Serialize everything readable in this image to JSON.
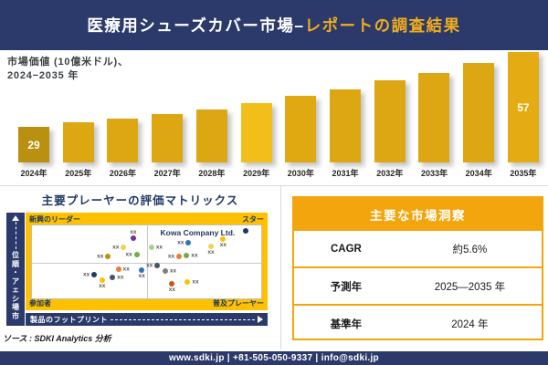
{
  "header": {
    "title_main": "医療用シューズカバー市場–",
    "title_accent": "レポートの調査結果"
  },
  "chart_data": [
    {
      "type": "bar",
      "subtitle_line1": "市場価値 (10億米ドル)、",
      "subtitle_line2": "2024−2035 年",
      "categories": [
        "2024年",
        "2025年",
        "2026年",
        "2027年",
        "2028年",
        "2029年",
        "2030年",
        "2031年",
        "2032年",
        "2033年",
        "2034年",
        "2035年"
      ],
      "values_labeled": {
        "2024年": 29,
        "2035年": 57
      },
      "values_estimated": [
        29,
        31,
        32,
        34,
        36,
        38,
        41,
        43,
        46,
        49,
        53,
        57
      ],
      "bar_heights_pct": [
        32,
        36,
        40,
        44,
        48,
        54,
        60,
        66,
        74,
        81,
        90,
        100
      ],
      "bar_colors": [
        "#B9900F",
        "#DCA713",
        "#DCA713",
        "#DCA713",
        "#DCA713",
        "#F2BE1A",
        "#E0A912",
        "#DCA713",
        "#DCA713",
        "#DCA713",
        "#DCA713",
        "#E4AB12"
      ],
      "ylim": [
        0,
        60
      ],
      "grid": false,
      "legend": "none"
    },
    {
      "type": "scatter",
      "title": "主要プレーヤーの評価マトリックス",
      "xlabel": "製品のフットプリント",
      "ylabel": "市場シェア・順位",
      "quadrants": {
        "top_left": "新興のリーダー",
        "top_right": "スター",
        "bottom_left": "参加者",
        "bottom_right": "普及プレーヤー"
      },
      "highlight_company": "Kowa Company Ltd.",
      "points": [
        {
          "x": 44.2,
          "y": 17.1,
          "color": "#7030A0",
          "label": "xx",
          "side": "above"
        },
        {
          "x": 40.0,
          "y": 30.5,
          "color": "#F2D252",
          "label": "xx",
          "side": "left"
        },
        {
          "x": 33.2,
          "y": 42.7,
          "color": "#BF9000",
          "label": "xx",
          "side": "left"
        },
        {
          "x": 45.7,
          "y": 40.2,
          "color": "#70AD47",
          "label": "xx",
          "side": "left"
        },
        {
          "x": 93.2,
          "y": 7.3,
          "color": "#1F3864",
          "label": "",
          "side": "left"
        },
        {
          "x": 83.4,
          "y": 18.3,
          "color": "#FFC000",
          "label": "xx",
          "side": "below"
        },
        {
          "x": 78.1,
          "y": 29.3,
          "color": "#F2D252",
          "label": "xx",
          "side": "below"
        },
        {
          "x": 68.3,
          "y": 23.2,
          "color": "#2E75B6",
          "label": "xx",
          "side": "left"
        },
        {
          "x": 52.1,
          "y": 30.5,
          "color": "#A9D18E",
          "label": "xx",
          "side": "right"
        },
        {
          "x": 64.2,
          "y": 42.7,
          "color": "#ED7D31",
          "label": "xx",
          "side": "left"
        },
        {
          "x": 67.5,
          "y": 41.5,
          "color": "#70AD47",
          "label": "xx",
          "side": "right"
        },
        {
          "x": 37.7,
          "y": 59.8,
          "color": "#ED7D31",
          "label": "xx",
          "side": "right"
        },
        {
          "x": 47.9,
          "y": 61.0,
          "color": "#2E75B6",
          "label": "xx",
          "side": "below"
        },
        {
          "x": 27.2,
          "y": 67.1,
          "color": "#1F3864",
          "label": "xx",
          "side": "left"
        },
        {
          "x": 35.1,
          "y": 70.7,
          "color": "#44546A",
          "label": "xx",
          "side": "right"
        },
        {
          "x": 30.6,
          "y": 75.6,
          "color": "#FFC000",
          "label": "xx",
          "side": "below"
        },
        {
          "x": 54.7,
          "y": 54.9,
          "color": "#44546A",
          "label": "xx",
          "side": "left"
        },
        {
          "x": 58.1,
          "y": 62.2,
          "color": "#7F7F7F",
          "label": "xx",
          "side": "right"
        },
        {
          "x": 61.1,
          "y": 80.5,
          "color": "#C55A11",
          "label": "xx",
          "side": "below"
        },
        {
          "x": 67.9,
          "y": 78.0,
          "color": "#FFC000",
          "label": "xx",
          "side": "right"
        }
      ]
    },
    {
      "type": "table",
      "title": "主要な市場洞察",
      "rows": [
        [
          "CAGR",
          "約5.6%"
        ],
        [
          "予測年",
          "2025—2035 年"
        ],
        [
          "基準年",
          "2024 年"
        ]
      ]
    }
  ],
  "source_note": "ソース : SDKI Analytics 分析",
  "footer": {
    "contact_line": "www.sdki.jp | +81-505-050-9337 | info@sdki.jp"
  },
  "colors": {
    "navy": "#2B3A6A",
    "title_accent_gold": "#F0AC1E",
    "bar_gold": "#DCA713",
    "band_gold": "#FFC000",
    "table_gold": "#F2A50C"
  }
}
